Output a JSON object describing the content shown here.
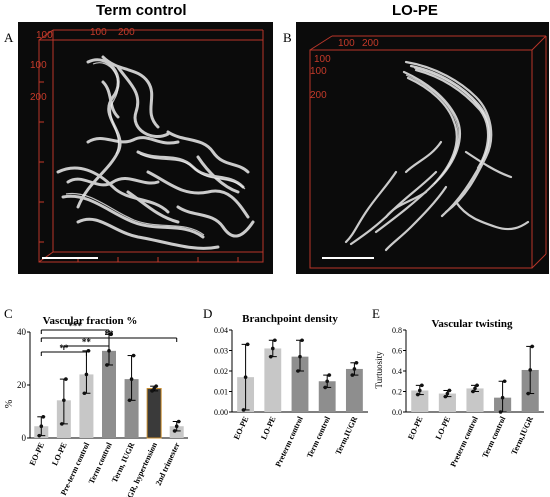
{
  "headers": {
    "left_title": "Term control",
    "right_title": "LO-PE",
    "letter_a": "A",
    "letter_b": "B",
    "letter_c": "C",
    "letter_d": "D",
    "letter_e": "E"
  },
  "volume_a": {
    "tick_labels_top": [
      "100",
      "200"
    ],
    "tick_labels_left": [
      "100",
      "200"
    ],
    "corner_label": "100"
  },
  "volume_b": {
    "tick_labels_top": [
      "100",
      "200"
    ],
    "tick_labels_left": [
      "100",
      "200"
    ],
    "corner_label": "100"
  },
  "colors": {
    "bar_light": "#c7c7c7",
    "bar_medium": "#8e8e8e",
    "bar_dark": "#3a3a3a",
    "bar_orange_edge": "#c78a2a",
    "axis_red": "#c43a2a",
    "vessel": "#d9d9d9"
  },
  "chart_data": [
    {
      "type": "bar",
      "title": "Vascular fraction %",
      "ylabel": "%",
      "ylim": [
        0,
        45
      ],
      "yticks": [
        "0",
        "20",
        "40"
      ],
      "categories": [
        "EO-PE",
        "LO-PE",
        "Pre-term control",
        "Term control",
        "Term, IUGR",
        "IUGR, hypertension",
        "2nd trimester"
      ],
      "values": [
        5,
        16,
        27,
        37,
        25,
        21,
        5
      ],
      "error_low": [
        1,
        6,
        19,
        31,
        16,
        20,
        3
      ],
      "error_high": [
        9,
        25,
        37,
        44,
        35,
        22,
        7
      ],
      "significance": [
        {
          "from": "EO-PE",
          "to": "Term control",
          "label": "***"
        },
        {
          "from": "EO-PE",
          "to": "2nd trimester",
          "label": "**"
        },
        {
          "from": "EO-PE",
          "to": "Pre-term control",
          "label": "**"
        },
        {
          "from": "LO-PE",
          "to": "Term control",
          "label": "**"
        }
      ]
    },
    {
      "type": "bar",
      "title": "Branchpoint density",
      "ylabel": "",
      "ylim": [
        0,
        0.04
      ],
      "yticks": [
        "0.00",
        "0.01",
        "0.02",
        "0.03",
        "0.04"
      ],
      "categories": [
        "EO-PE",
        "LO-PE",
        "Preterm control",
        "Term control",
        "Term,IUGR"
      ],
      "values": [
        0.017,
        0.031,
        0.027,
        0.015,
        0.021
      ],
      "error_low": [
        0.001,
        0.027,
        0.02,
        0.012,
        0.018
      ],
      "error_high": [
        0.033,
        0.035,
        0.035,
        0.018,
        0.024
      ]
    },
    {
      "type": "bar",
      "title": "Vascular twisting",
      "ylabel": "Turtuosity",
      "ylim": [
        0,
        0.8
      ],
      "yticks": [
        "0.0",
        "0.2",
        "0.4",
        "0.6",
        "0.8"
      ],
      "categories": [
        "EO-PE",
        "LO-PE",
        "Preterm control",
        "Term control",
        "Term,IUGR"
      ],
      "values": [
        0.21,
        0.18,
        0.23,
        0.14,
        0.41
      ],
      "error_low": [
        0.17,
        0.15,
        0.2,
        0.0,
        0.18
      ],
      "error_high": [
        0.26,
        0.21,
        0.26,
        0.3,
        0.64
      ]
    }
  ]
}
